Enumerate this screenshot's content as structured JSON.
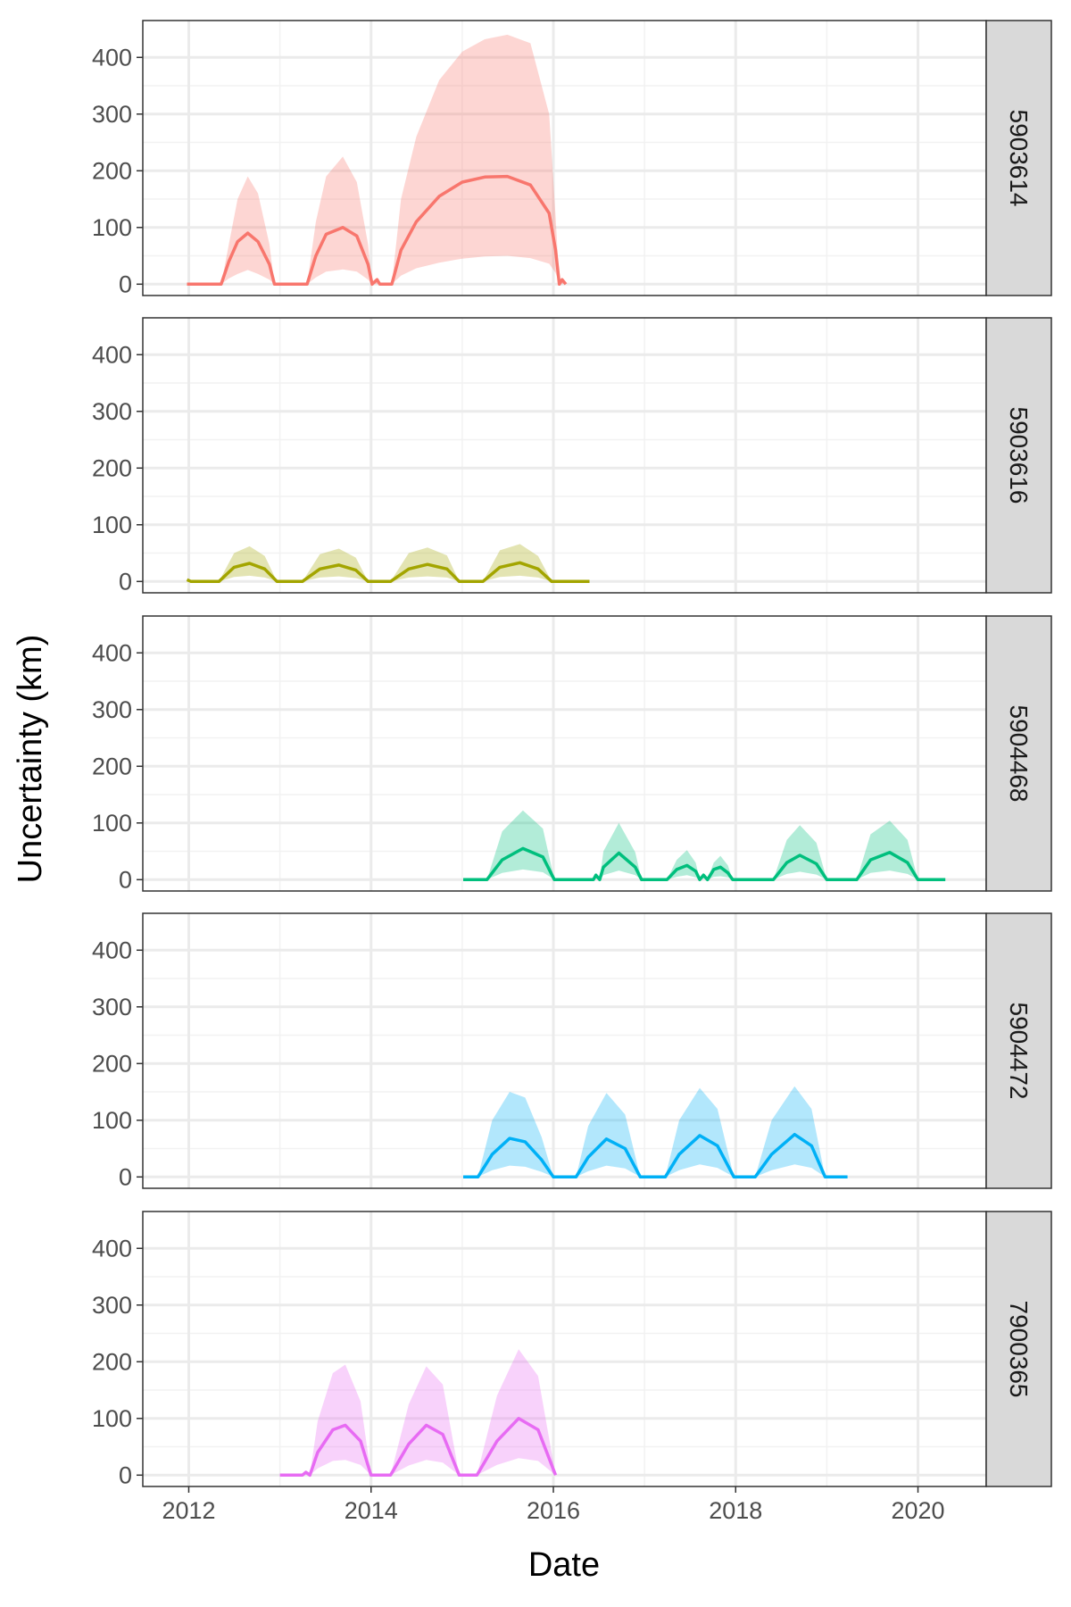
{
  "chart_data": {
    "type": "area",
    "layout": "faceted",
    "xlabel": "Date",
    "ylabel": "Uncertainty (km)",
    "x_ticks": [
      "2012",
      "2014",
      "2016",
      "2018",
      "2020"
    ],
    "xlim": [
      "2011-07-01",
      "2020-10-01"
    ],
    "y_ticks": [
      "0",
      "100",
      "200",
      "300",
      "400"
    ],
    "ylim": [
      -20,
      465
    ],
    "grid": true,
    "legend": "none",
    "facets": [
      {
        "label": "5903614",
        "color": "#F8766D",
        "fill": "#F8766D",
        "points": [
          [
            "2011-12-25",
            0,
            0,
            0
          ],
          [
            "2012-05-10",
            0,
            0,
            0
          ],
          [
            "2012-06-10",
            40,
            10,
            70
          ],
          [
            "2012-07-15",
            75,
            18,
            150
          ],
          [
            "2012-08-25",
            90,
            25,
            190
          ],
          [
            "2012-10-05",
            75,
            18,
            160
          ],
          [
            "2012-11-20",
            35,
            8,
            70
          ],
          [
            "2012-12-10",
            0,
            0,
            0
          ],
          [
            "2013-04-20",
            0,
            0,
            0
          ],
          [
            "2013-05-25",
            50,
            12,
            110
          ],
          [
            "2013-07-05",
            88,
            22,
            190
          ],
          [
            "2013-09-10",
            100,
            26,
            225
          ],
          [
            "2013-11-05",
            85,
            22,
            180
          ],
          [
            "2013-12-20",
            35,
            8,
            70
          ],
          [
            "2014-01-05",
            0,
            0,
            0
          ],
          [
            "2014-01-25",
            8,
            0,
            8
          ],
          [
            "2014-02-05",
            0,
            0,
            0
          ],
          [
            "2014-03-25",
            0,
            0,
            0
          ],
          [
            "2014-05-01",
            60,
            15,
            150
          ],
          [
            "2014-07-01",
            110,
            28,
            260
          ],
          [
            "2014-10-01",
            155,
            38,
            360
          ],
          [
            "2015-01-01",
            180,
            45,
            410
          ],
          [
            "2015-04-01",
            189,
            49,
            432
          ],
          [
            "2015-07-01",
            190,
            50,
            440
          ],
          [
            "2015-10-01",
            175,
            46,
            425
          ],
          [
            "2015-12-15",
            125,
            36,
            300
          ],
          [
            "2016-01-10",
            60,
            20,
            120
          ],
          [
            "2016-01-25",
            0,
            0,
            0
          ],
          [
            "2016-02-05",
            8,
            0,
            8
          ],
          [
            "2016-02-20",
            0,
            0,
            0
          ]
        ]
      },
      {
        "label": "5903616",
        "color": "#A3A500",
        "fill": "#A3A500",
        "points": [
          [
            "2011-12-25",
            3,
            0,
            3
          ],
          [
            "2012-01-10",
            0,
            0,
            0
          ],
          [
            "2012-05-01",
            0,
            0,
            0
          ],
          [
            "2012-07-01",
            25,
            8,
            50
          ],
          [
            "2012-09-01",
            32,
            10,
            62
          ],
          [
            "2012-11-01",
            22,
            7,
            45
          ],
          [
            "2012-12-20",
            0,
            0,
            0
          ],
          [
            "2013-04-01",
            0,
            0,
            0
          ],
          [
            "2013-06-10",
            22,
            7,
            48
          ],
          [
            "2013-08-25",
            29,
            9,
            58
          ],
          [
            "2013-11-01",
            20,
            6,
            42
          ],
          [
            "2013-12-20",
            0,
            0,
            0
          ],
          [
            "2014-03-20",
            0,
            0,
            0
          ],
          [
            "2014-06-01",
            22,
            7,
            50
          ],
          [
            "2014-08-15",
            30,
            9,
            60
          ],
          [
            "2014-11-01",
            22,
            7,
            46
          ],
          [
            "2014-12-20",
            0,
            0,
            0
          ],
          [
            "2015-03-25",
            0,
            0,
            0
          ],
          [
            "2015-06-01",
            25,
            8,
            55
          ],
          [
            "2015-08-20",
            33,
            10,
            66
          ],
          [
            "2015-11-01",
            22,
            7,
            45
          ],
          [
            "2015-12-25",
            0,
            0,
            0
          ],
          [
            "2016-05-25",
            0,
            0,
            0
          ]
        ]
      },
      {
        "label": "5904468",
        "color": "#00BF7D",
        "fill": "#00BF7D",
        "points": [
          [
            "2015-01-05",
            0,
            0,
            0
          ],
          [
            "2015-04-10",
            0,
            0,
            0
          ],
          [
            "2015-06-10",
            35,
            12,
            85
          ],
          [
            "2015-09-01",
            55,
            18,
            122
          ],
          [
            "2015-11-20",
            40,
            13,
            90
          ],
          [
            "2016-01-05",
            0,
            0,
            0
          ],
          [
            "2016-06-10",
            0,
            0,
            0
          ],
          [
            "2016-06-20",
            8,
            2,
            8
          ],
          [
            "2016-07-05",
            0,
            0,
            0
          ],
          [
            "2016-07-20",
            22,
            8,
            50
          ],
          [
            "2016-09-20",
            47,
            16,
            100
          ],
          [
            "2016-11-25",
            22,
            8,
            48
          ],
          [
            "2016-12-20",
            0,
            0,
            0
          ],
          [
            "2017-04-01",
            0,
            0,
            0
          ],
          [
            "2017-05-10",
            18,
            5,
            35
          ],
          [
            "2017-06-20",
            25,
            8,
            52
          ],
          [
            "2017-07-25",
            15,
            4,
            30
          ],
          [
            "2017-08-10",
            0,
            0,
            0
          ],
          [
            "2017-08-25",
            8,
            2,
            12
          ],
          [
            "2017-09-10",
            0,
            0,
            0
          ],
          [
            "2017-10-05",
            18,
            5,
            30
          ],
          [
            "2017-11-01",
            22,
            6,
            42
          ],
          [
            "2017-12-01",
            12,
            4,
            25
          ],
          [
            "2017-12-20",
            0,
            0,
            0
          ],
          [
            "2018-06-01",
            0,
            0,
            0
          ],
          [
            "2018-07-25",
            30,
            10,
            70
          ],
          [
            "2018-09-15",
            43,
            14,
            96
          ],
          [
            "2018-11-20",
            28,
            9,
            65
          ],
          [
            "2019-01-01",
            0,
            0,
            0
          ],
          [
            "2019-05-01",
            0,
            0,
            0
          ],
          [
            "2019-06-25",
            35,
            12,
            80
          ],
          [
            "2019-09-10",
            48,
            16,
            104
          ],
          [
            "2019-11-20",
            30,
            10,
            70
          ],
          [
            "2020-01-01",
            0,
            0,
            0
          ],
          [
            "2020-04-20",
            0,
            0,
            0
          ]
        ]
      },
      {
        "label": "5904472",
        "color": "#00B0F6",
        "fill": "#00B0F6",
        "points": [
          [
            "2015-01-05",
            0,
            0,
            0
          ],
          [
            "2015-03-05",
            0,
            0,
            0
          ],
          [
            "2015-05-01",
            40,
            12,
            100
          ],
          [
            "2015-07-10",
            68,
            20,
            150
          ],
          [
            "2015-09-10",
            62,
            18,
            140
          ],
          [
            "2015-11-15",
            30,
            9,
            70
          ],
          [
            "2016-01-01",
            0,
            0,
            0
          ],
          [
            "2016-04-01",
            0,
            0,
            0
          ],
          [
            "2016-05-20",
            35,
            10,
            90
          ],
          [
            "2016-08-01",
            67,
            20,
            148
          ],
          [
            "2016-10-15",
            50,
            15,
            110
          ],
          [
            "2016-12-15",
            0,
            0,
            0
          ],
          [
            "2017-03-25",
            0,
            0,
            0
          ],
          [
            "2017-05-20",
            40,
            12,
            100
          ],
          [
            "2017-08-10",
            73,
            22,
            157
          ],
          [
            "2017-10-20",
            55,
            16,
            120
          ],
          [
            "2017-12-25",
            0,
            0,
            0
          ],
          [
            "2018-03-20",
            0,
            0,
            0
          ],
          [
            "2018-05-25",
            40,
            12,
            100
          ],
          [
            "2018-08-25",
            75,
            22,
            160
          ],
          [
            "2018-11-01",
            55,
            16,
            120
          ],
          [
            "2018-12-25",
            0,
            0,
            0
          ],
          [
            "2019-03-25",
            0,
            0,
            0
          ]
        ]
      },
      {
        "label": "7900365",
        "color": "#E76BF3",
        "fill": "#E76BF3",
        "points": [
          [
            "2013-01-01",
            0,
            0,
            0
          ],
          [
            "2013-04-01",
            0,
            0,
            0
          ],
          [
            "2013-04-15",
            5,
            1,
            5
          ],
          [
            "2013-05-01",
            0,
            0,
            0
          ],
          [
            "2013-06-01",
            40,
            12,
            95
          ],
          [
            "2013-08-01",
            80,
            25,
            180
          ],
          [
            "2013-09-20",
            88,
            27,
            195
          ],
          [
            "2013-11-20",
            60,
            18,
            130
          ],
          [
            "2014-01-01",
            0,
            0,
            0
          ],
          [
            "2014-03-20",
            0,
            0,
            0
          ],
          [
            "2014-06-01",
            55,
            17,
            125
          ],
          [
            "2014-08-10",
            88,
            27,
            192
          ],
          [
            "2014-10-15",
            72,
            22,
            160
          ],
          [
            "2014-12-20",
            0,
            0,
            0
          ],
          [
            "2015-03-01",
            0,
            0,
            0
          ],
          [
            "2015-05-20",
            60,
            18,
            140
          ],
          [
            "2015-08-15",
            100,
            30,
            222
          ],
          [
            "2015-11-01",
            80,
            25,
            175
          ],
          [
            "2016-01-10",
            0,
            0,
            0
          ]
        ]
      }
    ]
  }
}
